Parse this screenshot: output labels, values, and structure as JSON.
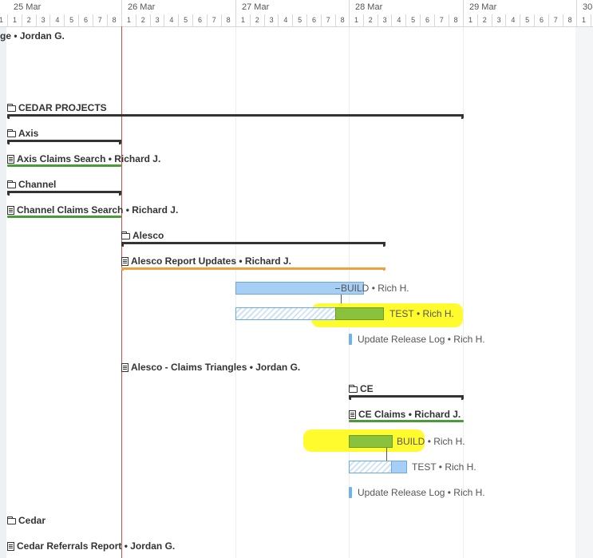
{
  "timeline": {
    "days": [
      "25 Mar",
      "26 Mar",
      "27 Mar",
      "28 Mar",
      "29 Mar",
      "30"
    ],
    "hours": [
      "1",
      "2",
      "3",
      "4",
      "5",
      "6",
      "7",
      "8"
    ]
  },
  "rows": {
    "top_truncated": "ge • Jordan G.",
    "cedar_projects": "CEDAR PROJECTS",
    "axis": "Axis",
    "axis_claims_search": "Axis Claims Search • Richard J.",
    "channel": "Channel",
    "channel_claims_search": "Channel Claims Search • Richard J.",
    "alesco": "Alesco",
    "alesco_report_updates": "Alesco Report Updates • Richard J.",
    "alesco_build": "BUILD",
    "alesco_build_who": "• Rich H.",
    "alesco_test": "TEST",
    "alesco_test_who": "• Rich H.",
    "alesco_release_log": "Update Release Log • Rich H.",
    "alesco_claims_triangles": "Alesco - Claims Triangles • Jordan G.",
    "ce": "CE",
    "ce_claims": "CE Claims • Richard J.",
    "ce_build": "BUILD",
    "ce_build_who": "• Rich H.",
    "ce_test": "TEST • Rich H.",
    "ce_release_log": "Update Release Log • Rich H.",
    "cedar": "Cedar",
    "cedar_referrals": "Cedar Referrals Report • Jordan G."
  },
  "colors": {
    "today_line": "#d04a4a",
    "summary_bracket": "#333333",
    "status_green": "#4a9c3a",
    "status_orange": "#f0a040",
    "task_blue": "#a7cff5",
    "task_green": "#8ac23e",
    "highlight": "#fffb22"
  },
  "icons": {
    "folder": "folder-icon",
    "task": "clipboard-icon"
  }
}
